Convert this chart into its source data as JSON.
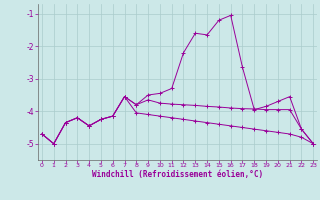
{
  "xlabel": "Windchill (Refroidissement éolien,°C)",
  "background_color": "#cce8e8",
  "grid_color": "#aacccc",
  "line_color": "#990099",
  "spine_color": "#666666",
  "x": [
    0,
    1,
    2,
    3,
    4,
    5,
    6,
    7,
    8,
    9,
    10,
    11,
    12,
    13,
    14,
    15,
    16,
    17,
    18,
    19,
    20,
    21,
    22,
    23
  ],
  "y_line1": [
    -4.7,
    -5.0,
    -4.35,
    -4.2,
    -4.45,
    -4.25,
    -4.15,
    -3.55,
    -3.8,
    -3.5,
    -3.45,
    -3.3,
    -2.2,
    -1.6,
    -1.65,
    -1.2,
    -1.05,
    -2.65,
    -3.95,
    -3.85,
    -3.7,
    -3.55,
    -4.55,
    -5.0
  ],
  "y_line2": [
    -4.7,
    -5.0,
    -4.35,
    -4.2,
    -4.45,
    -4.25,
    -4.15,
    -3.55,
    -3.8,
    -3.65,
    -3.75,
    -3.78,
    -3.8,
    -3.82,
    -3.85,
    -3.87,
    -3.9,
    -3.92,
    -3.93,
    -3.95,
    -3.95,
    -3.95,
    -4.55,
    -5.0
  ],
  "y_line3": [
    -4.7,
    -5.0,
    -4.35,
    -4.2,
    -4.45,
    -4.25,
    -4.15,
    -3.55,
    -4.05,
    -4.1,
    -4.15,
    -4.2,
    -4.25,
    -4.3,
    -4.35,
    -4.4,
    -4.45,
    -4.5,
    -4.55,
    -4.6,
    -4.65,
    -4.7,
    -4.8,
    -5.0
  ],
  "ylim": [
    -5.5,
    -0.7
  ],
  "yticks": [
    -5,
    -4,
    -3,
    -2,
    -1
  ],
  "xlim": [
    -0.3,
    23.3
  ]
}
